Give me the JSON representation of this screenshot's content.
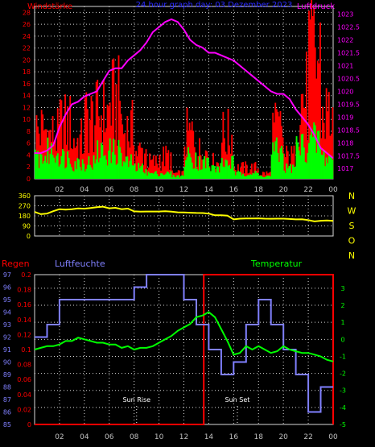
{
  "chart_data": [
    {
      "type": "bar",
      "title": "24 hour graph day: 03 Dezember 2023",
      "left_label": "Windstärke",
      "right_label": "Luftdruck",
      "xticks": [
        "02",
        "04",
        "06",
        "08",
        "10",
        "12",
        "14",
        "16",
        "18",
        "20",
        "22",
        "00"
      ],
      "yticks_left": [
        "0",
        "2",
        "4",
        "6",
        "8",
        "10",
        "12",
        "14",
        "16",
        "18",
        "20",
        "22",
        "24",
        "26",
        "28"
      ],
      "yticks_right": [
        "1017",
        "1017.5",
        "1018",
        "1018.5",
        "1019",
        "1019.5",
        "1020",
        "1020.5",
        "1021",
        "1021.5",
        "1022",
        "1022.5",
        "1023"
      ],
      "ylim_left": [
        0,
        29
      ],
      "ylim_right": [
        1016.6,
        1023.3
      ],
      "colors": {
        "gust": "#ff0000",
        "wind": "#00ff00",
        "pressure": "#ff00ff",
        "left_axis": "#ff0000",
        "right_axis": "#ff00ff",
        "grid": "#d8d8d8",
        "title": "#2a2aff"
      },
      "wind_points_per_hour": 10,
      "gust_hourly": [
        9,
        8,
        10,
        7,
        11,
        12,
        14,
        9,
        5,
        3,
        4,
        1,
        8,
        5,
        3,
        8,
        2,
        2,
        1,
        9,
        4,
        15,
        22,
        12
      ],
      "wind_hourly": [
        4,
        5,
        4,
        3,
        3,
        5,
        5,
        3,
        2,
        1,
        1,
        0.5,
        4,
        3,
        2,
        3,
        1,
        1,
        0.5,
        5,
        2,
        6,
        7,
        4
      ],
      "pressure": {
        "x": [
          0,
          0.5,
          1,
          1.5,
          2,
          2.5,
          3,
          3.5,
          4,
          4.5,
          5,
          5.5,
          6,
          6.5,
          7,
          7.5,
          8,
          8.5,
          9,
          9.5,
          10,
          10.5,
          11,
          11.5,
          12,
          12.5,
          13,
          13.5,
          14,
          14.5,
          15,
          15.5,
          16,
          16.5,
          17,
          17.5,
          18,
          18.5,
          19,
          19.5,
          20,
          20.5,
          21,
          21.5,
          22,
          22.5,
          23,
          23.5,
          24
        ],
        "y": [
          1017.6,
          1017.6,
          1017.7,
          1017.9,
          1018.6,
          1019.1,
          1019.5,
          1019.6,
          1019.8,
          1019.9,
          1020.0,
          1020.4,
          1020.8,
          1020.9,
          1020.9,
          1021.2,
          1021.4,
          1021.6,
          1021.9,
          1022.3,
          1022.5,
          1022.7,
          1022.8,
          1022.7,
          1022.4,
          1022.0,
          1021.8,
          1021.7,
          1021.5,
          1021.5,
          1021.4,
          1021.3,
          1021.2,
          1021.0,
          1020.8,
          1020.6,
          1020.4,
          1020.2,
          1020.0,
          1019.9,
          1019.9,
          1019.7,
          1019.3,
          1019.0,
          1018.7,
          1018.3,
          1017.8,
          1017.6,
          1017.4
        ]
      }
    },
    {
      "type": "line",
      "right_label": "N W S O N",
      "xticks": [
        "02",
        "04",
        "06",
        "08",
        "10",
        "12",
        "14",
        "16",
        "18",
        "20",
        "22",
        "00"
      ],
      "yticks": [
        "0",
        "90",
        "180",
        "270",
        "360"
      ],
      "ylim": [
        0,
        360
      ],
      "colors": {
        "line": "#ffff00",
        "axis": "#ffff00",
        "grid": "#d8d8d8"
      },
      "x": [
        0,
        0.5,
        1,
        1.5,
        2,
        2.5,
        3,
        3.5,
        4,
        4.5,
        5,
        5.5,
        6,
        6.5,
        7,
        7.5,
        8,
        8.5,
        9,
        9.5,
        10,
        10.5,
        11,
        11.5,
        12,
        12.5,
        13,
        13.5,
        14,
        14.5,
        15,
        15.5,
        16,
        16.5,
        17,
        17.5,
        18,
        18.5,
        19,
        19.5,
        20,
        20.5,
        21,
        21.5,
        22,
        22.5,
        23,
        23.5,
        24
      ],
      "y": [
        215,
        195,
        200,
        222,
        240,
        236,
        240,
        247,
        244,
        250,
        258,
        262,
        248,
        252,
        240,
        245,
        220,
        218,
        219,
        219,
        219,
        222,
        218,
        212,
        210,
        208,
        206,
        205,
        200,
        185,
        185,
        182,
        148,
        155,
        156,
        156,
        158,
        155,
        154,
        155,
        155,
        152,
        148,
        149,
        142,
        130,
        136,
        138,
        135
      ]
    },
    {
      "type": "line",
      "left_labels": [
        "Regen",
        "Luftfeuchte"
      ],
      "right_label": "Temperatur",
      "xticks": [
        "02",
        "04",
        "06",
        "08",
        "10",
        "12",
        "14",
        "16",
        "18",
        "20",
        "22",
        "00"
      ],
      "yticks_rain": [
        "0",
        "0.02",
        "0.04",
        "0.06",
        "0.08",
        "0.1",
        "0.12",
        "0.14",
        "0.16",
        "0.18",
        "0.2"
      ],
      "yticks_humidity": [
        "85",
        "86",
        "87",
        "88",
        "89",
        "90",
        "91",
        "92",
        "93",
        "94",
        "95",
        "96",
        "97"
      ],
      "yticks_temp": [
        "-5",
        "-4",
        "-3",
        "-2",
        "-1",
        "0",
        "1",
        "2",
        "3"
      ],
      "ylim_rain": [
        0,
        0.2
      ],
      "ylim_humidity": [
        85,
        97
      ],
      "ylim_temp": [
        -5,
        3.8
      ],
      "colors": {
        "rain": "#ff0000",
        "humidity": "#8080ff",
        "temperature": "#00ff00",
        "grid": "#d8d8d8"
      },
      "annotations": [
        {
          "text": "Sun Rise",
          "x": 8.2
        },
        {
          "text": "Sun Set",
          "x": 16.3
        }
      ],
      "rain": {
        "x": [
          0,
          13.6,
          13.6,
          24,
          24
        ],
        "y": [
          0,
          0,
          0.2,
          0.2,
          0
        ]
      },
      "humidity": {
        "x": [
          0,
          1,
          1,
          2,
          2,
          8,
          8,
          9,
          9,
          12,
          12,
          13,
          13,
          14,
          14,
          15,
          15,
          16,
          16,
          17,
          17,
          18,
          18,
          19,
          19,
          20,
          20,
          21,
          21,
          22,
          22,
          23,
          23,
          24
        ],
        "y": [
          92,
          92,
          93,
          93,
          95,
          95,
          96,
          96,
          97,
          97,
          95,
          95,
          93,
          93,
          91,
          91,
          89,
          89,
          90,
          90,
          93,
          93,
          95,
          95,
          93,
          93,
          91,
          91,
          89,
          89,
          86,
          86,
          88,
          88
        ]
      },
      "temperature": {
        "x": [
          0,
          0.5,
          1,
          1.5,
          2,
          2.5,
          3,
          3.5,
          4,
          4.5,
          5,
          5.5,
          6,
          6.5,
          7,
          7.5,
          8,
          8.5,
          9,
          9.5,
          10,
          10.5,
          11,
          11.5,
          12,
          12.5,
          13,
          13.5,
          14,
          14.5,
          15,
          15.5,
          16,
          16.5,
          17,
          17.5,
          18,
          18.5,
          19,
          19.5,
          20,
          20.5,
          21,
          21.5,
          22,
          22.5,
          23,
          23.5,
          24
        ],
        "y": [
          -0.6,
          -0.5,
          -0.4,
          -0.4,
          -0.3,
          -0.1,
          -0.1,
          0.1,
          0.0,
          -0.1,
          -0.2,
          -0.2,
          -0.3,
          -0.3,
          -0.5,
          -0.4,
          -0.6,
          -0.5,
          -0.5,
          -0.4,
          -0.2,
          0.0,
          0.2,
          0.5,
          0.7,
          0.9,
          1.3,
          1.4,
          1.6,
          1.3,
          0.6,
          -0.1,
          -0.9,
          -0.8,
          -0.4,
          -0.6,
          -0.4,
          -0.6,
          -0.8,
          -0.7,
          -0.4,
          -0.6,
          -0.7,
          -0.8,
          -0.8,
          -0.9,
          -1.0,
          -1.2,
          -1.3
        ]
      }
    }
  ]
}
